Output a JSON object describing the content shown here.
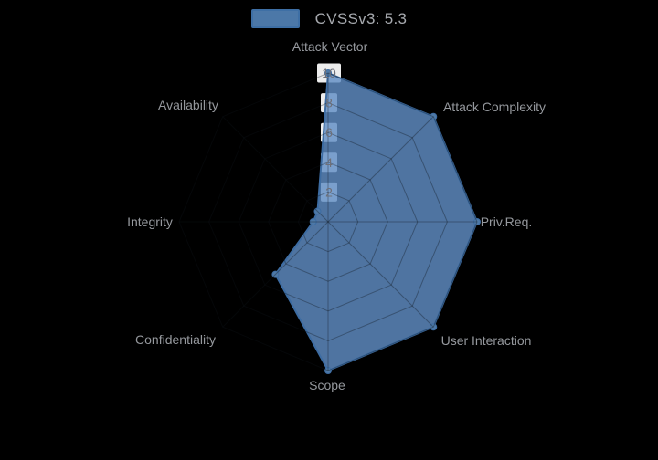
{
  "legend": {
    "label": "CVSSv3: 5.3"
  },
  "chart_data": {
    "type": "radar",
    "title": "",
    "legend": [
      "CVSSv3: 5.3"
    ],
    "legend_position": "top-center",
    "categories": [
      "Attack Vector",
      "Attack Complexity",
      "Priv.Req.",
      "User Interaction",
      "Scope",
      "Confidentiality",
      "Integrity",
      "Availability"
    ],
    "series": [
      {
        "name": "CVSSv3: 5.3",
        "values": [
          10,
          10,
          10,
          10,
          10,
          5,
          1,
          1
        ]
      }
    ],
    "score": 5.3,
    "radial_axis": {
      "min": 0,
      "max": 10,
      "ticks": [
        2,
        4,
        6,
        8,
        10
      ]
    },
    "grid": "spider-web",
    "colors": {
      "background": "#000000",
      "series_fill": "#608dc5",
      "series_fill_opacity": 0.82,
      "series_line": "#3d6ca2",
      "symbol_fill": "#4e79a7",
      "web_line_over_fill": "rgba(15,20,26,0.35)",
      "tick_label": "#6e7079",
      "tick_box_bg": "#fafafa",
      "axis_name": "#95989d",
      "legend_text": "#a6a9ae"
    }
  }
}
